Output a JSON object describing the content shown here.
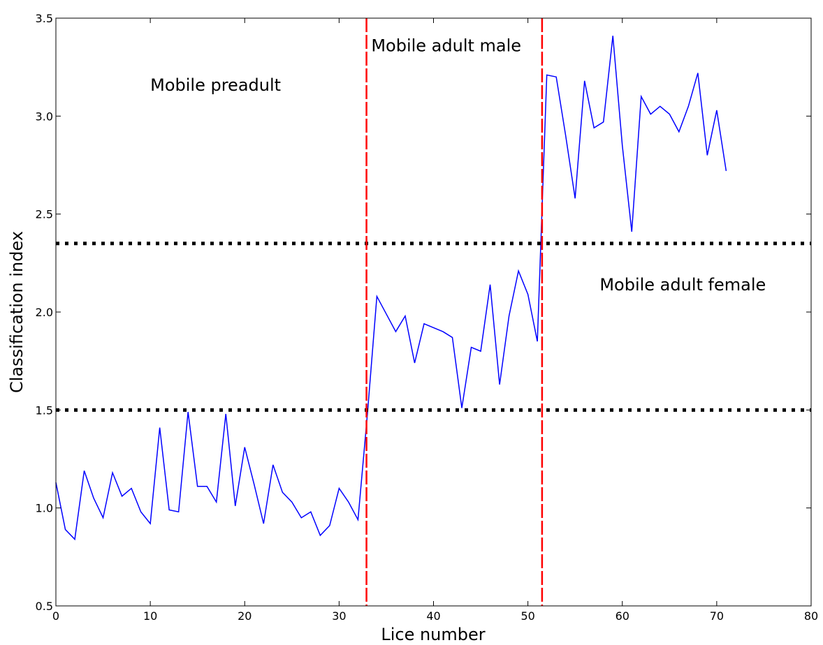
{
  "chart_data": {
    "type": "line",
    "xlabel": "Lice number",
    "ylabel": "Classification index",
    "xlim": [
      0,
      80
    ],
    "ylim": [
      0.5,
      3.5
    ],
    "x_ticks": [
      0,
      10,
      20,
      30,
      40,
      50,
      60,
      70,
      80
    ],
    "x_tick_labels": [
      "0",
      "10",
      "20",
      "30",
      "40",
      "50",
      "60",
      "70",
      "80"
    ],
    "y_ticks": [
      0.5,
      1.0,
      1.5,
      2.0,
      2.5,
      3.0,
      3.5
    ],
    "y_tick_labels": [
      "0.5",
      "1.0",
      "1.5",
      "2.0",
      "2.5",
      "3.0",
      "3.5"
    ],
    "grid": false,
    "series": [
      {
        "color": "#0000ff",
        "x": [
          0,
          1,
          2,
          3,
          4,
          5,
          6,
          7,
          8,
          9,
          10,
          11,
          12,
          13,
          14,
          15,
          16,
          17,
          18,
          19,
          20,
          21,
          22,
          23,
          24,
          25,
          26,
          27,
          28,
          29,
          30,
          31,
          32,
          33,
          34,
          35,
          36,
          37,
          38,
          39,
          40,
          41,
          42,
          43,
          44,
          45,
          46,
          47,
          48,
          49,
          50,
          51,
          52,
          53,
          54,
          55,
          56,
          57,
          58,
          59,
          60,
          61,
          62,
          63,
          64,
          65,
          66,
          67,
          68,
          69,
          70,
          71
        ],
        "y": [
          1.13,
          0.89,
          0.84,
          1.19,
          1.05,
          0.95,
          1.18,
          1.06,
          1.1,
          0.98,
          0.92,
          1.41,
          0.99,
          0.98,
          1.49,
          1.11,
          1.11,
          1.03,
          1.48,
          1.01,
          1.31,
          1.12,
          0.92,
          1.22,
          1.08,
          1.03,
          0.95,
          0.98,
          0.86,
          0.91,
          1.1,
          1.03,
          0.94,
          1.48,
          2.08,
          1.99,
          1.9,
          1.98,
          1.74,
          1.94,
          1.92,
          1.9,
          1.87,
          1.51,
          1.82,
          1.8,
          2.14,
          1.63,
          1.98,
          2.21,
          2.09,
          1.85,
          3.21,
          3.2,
          2.9,
          2.58,
          3.18,
          2.94,
          2.97,
          3.41,
          2.85,
          2.41,
          3.1,
          3.01,
          3.05,
          3.01,
          2.92,
          3.05,
          3.22,
          2.8,
          3.03,
          2.72
        ]
      }
    ],
    "vertical_lines": [
      {
        "x": 32.9,
        "color": "#ff0000",
        "style": "dashed"
      },
      {
        "x": 51.5,
        "color": "#ff0000",
        "style": "dashed"
      }
    ],
    "horizontal_lines": [
      {
        "y": 1.5,
        "color": "#000000",
        "style": "dotted"
      },
      {
        "y": 2.35,
        "color": "#000000",
        "style": "dotted"
      }
    ],
    "annotations": [
      {
        "text": "Mobile preadult",
        "x": 10,
        "y": 3.13
      },
      {
        "text": "Mobile adult male",
        "x": 33.4,
        "y": 3.33
      },
      {
        "text": "Mobile adult female",
        "x": 57.6,
        "y": 2.11
      }
    ]
  }
}
